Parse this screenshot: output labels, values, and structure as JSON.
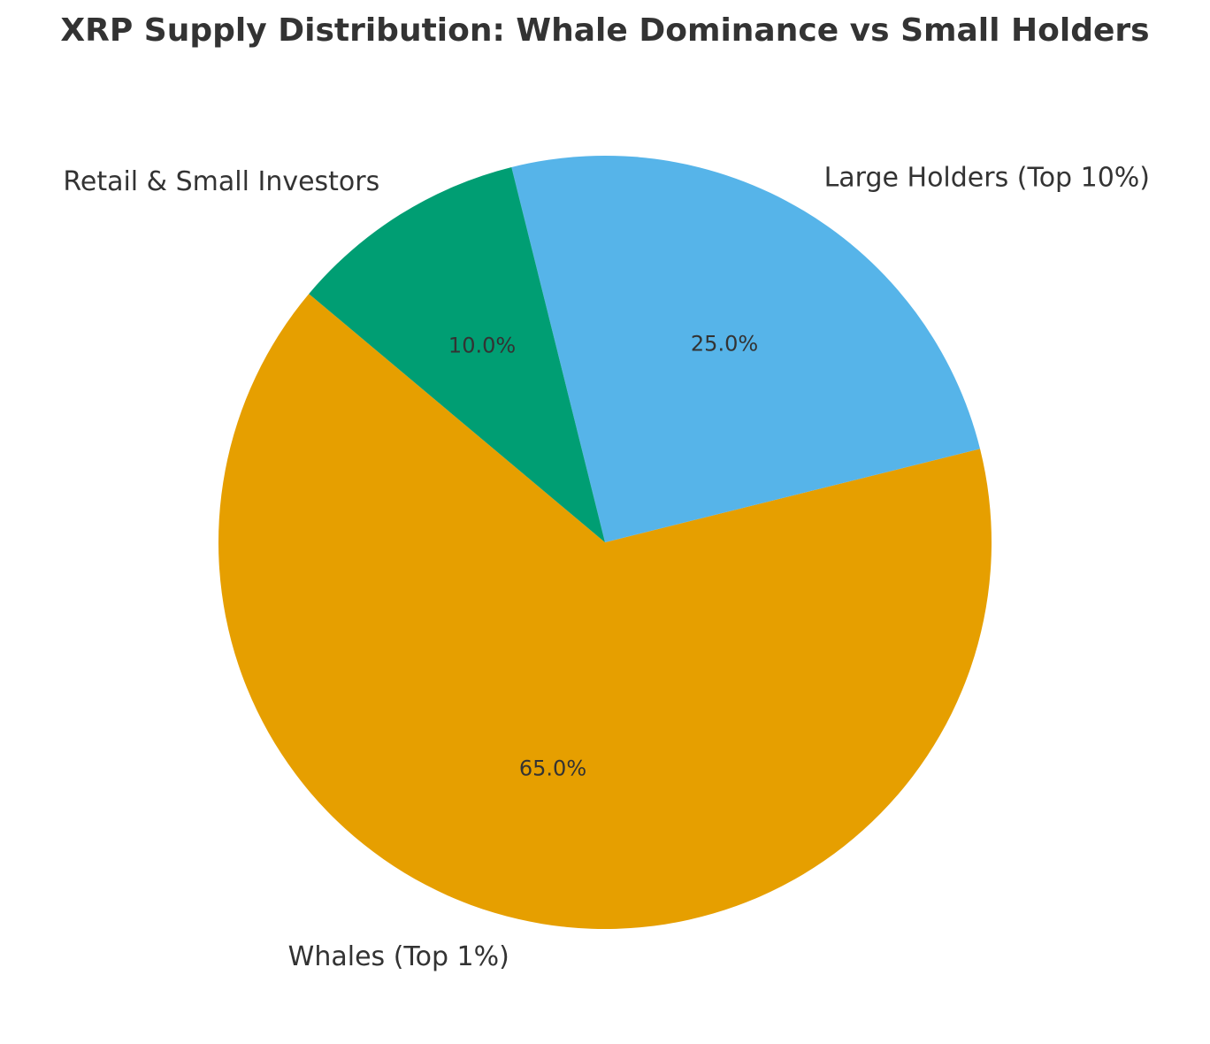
{
  "chart_data": {
    "type": "pie",
    "title": "XRP Supply Distribution: Whale Dominance vs Small Holders",
    "categories": [
      "Whales (Top 1%)",
      "Large Holders (Top 10%)",
      "Retail & Small Investors"
    ],
    "values": [
      65.0,
      25.0,
      10.0
    ],
    "value_labels": [
      "65.0%",
      "25.0%",
      "10.0%"
    ],
    "colors": [
      "#E69F00",
      "#56B4E9",
      "#009E73"
    ],
    "start_angle_deg": 140,
    "direction": "counterclockwise",
    "legend": "none"
  }
}
